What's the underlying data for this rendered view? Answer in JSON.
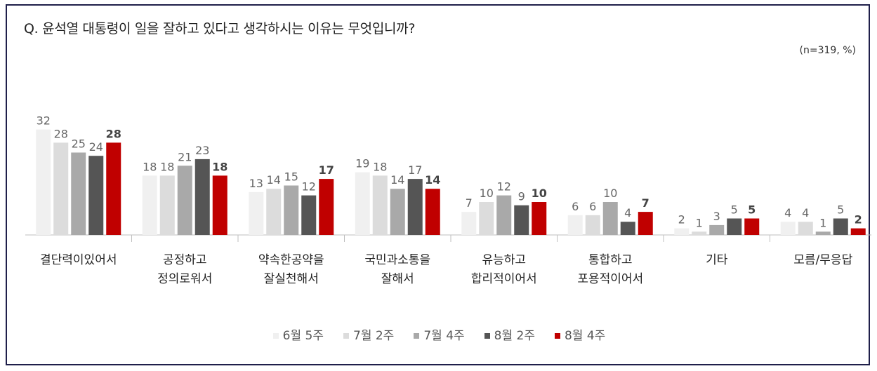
{
  "question": "Q. 윤석열 대통령이 일을 잘하고 있다고 생각하시는 이유는 무엇입니까?",
  "note": "(n=319, %)",
  "chart_data": {
    "type": "bar",
    "categories": [
      [
        "결단력이있어서"
      ],
      [
        "공정하고",
        "정의로워서"
      ],
      [
        "약속한공약을",
        "잘실천해서"
      ],
      [
        "국민과소통을",
        "잘해서"
      ],
      [
        "유능하고",
        "합리적이어서"
      ],
      [
        "통합하고",
        "포용적이어서"
      ],
      [
        "기타"
      ],
      [
        "모름/무응답"
      ]
    ],
    "series": [
      {
        "name": "6월 5주",
        "color": "#f0f0f0",
        "values": [
          32,
          18,
          13,
          19,
          7,
          6,
          2,
          4
        ]
      },
      {
        "name": "7월 2주",
        "color": "#dcdcdc",
        "values": [
          28,
          18,
          14,
          18,
          10,
          6,
          1,
          4
        ]
      },
      {
        "name": "7월 4주",
        "color": "#a9a9a9",
        "values": [
          25,
          21,
          15,
          14,
          12,
          10,
          3,
          1
        ]
      },
      {
        "name": "8월 2주",
        "color": "#555555",
        "values": [
          24,
          23,
          12,
          17,
          9,
          4,
          5,
          5
        ]
      },
      {
        "name": "8월 4주",
        "color": "#c00000",
        "values": [
          28,
          18,
          17,
          14,
          10,
          7,
          5,
          2
        ]
      }
    ],
    "ylim": [
      0,
      35
    ],
    "grid": false,
    "legend": "bottom"
  }
}
